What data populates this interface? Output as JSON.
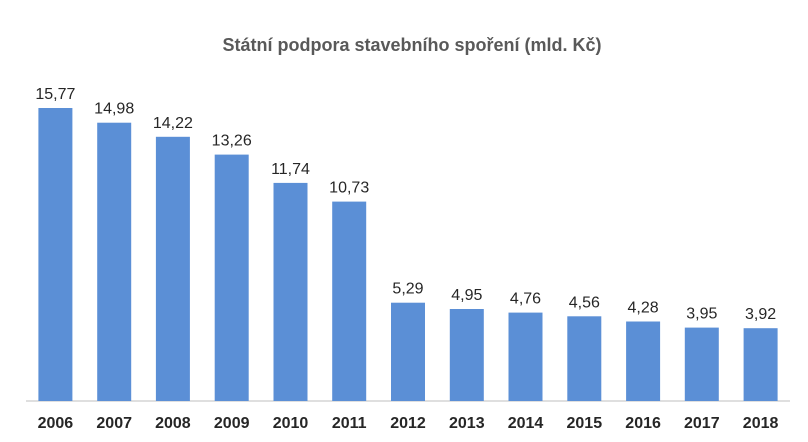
{
  "chart_data": {
    "type": "bar",
    "title": "Státní podpora stavebního spoření  (mld. Kč)",
    "xlabel": "",
    "ylabel": "",
    "categories": [
      "2006",
      "2007",
      "2008",
      "2009",
      "2010",
      "2011",
      "2012",
      "2013",
      "2014",
      "2015",
      "2016",
      "2017",
      "2018"
    ],
    "values": [
      15.77,
      14.98,
      14.22,
      13.26,
      11.74,
      10.73,
      5.29,
      4.95,
      4.76,
      4.56,
      4.28,
      3.95,
      3.92
    ],
    "data_labels": [
      "15,77",
      "14,98",
      "14,22",
      "13,26",
      "11,74",
      "10,73",
      "5,29",
      "4,95",
      "4,76",
      "4,56",
      "4,28",
      "3,95",
      "3,92"
    ],
    "ylim": [
      0,
      18
    ],
    "grid": false,
    "legend": "none",
    "colors": {
      "bar": "#5B8FD6",
      "axis": "#BFBFBF",
      "title": "#595959",
      "text": "#262626"
    }
  }
}
